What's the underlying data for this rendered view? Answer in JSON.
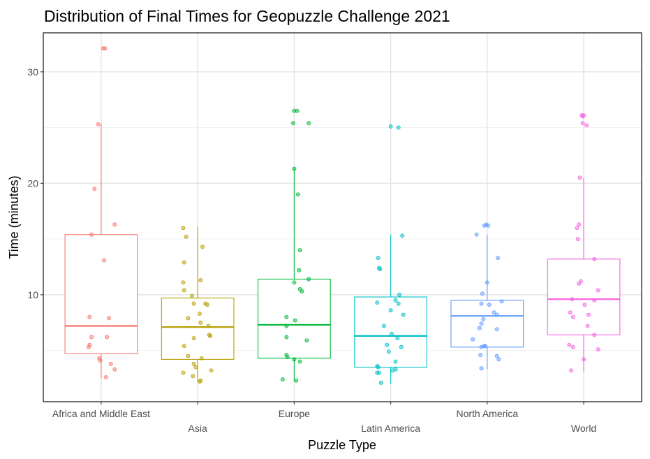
{
  "chart_data": {
    "type": "boxplot",
    "title": "Distribution of Final Times for Geopuzzle Challenge 2021",
    "xlabel": "Puzzle Type",
    "ylabel": "Time (minutes)",
    "ylim": [
      0.4,
      33.5
    ],
    "yticks": [
      10,
      20,
      30
    ],
    "grid": true,
    "legend": "none",
    "categories": [
      "Africa and Middle East",
      "Asia",
      "Europe",
      "Latin America",
      "North America",
      "World"
    ],
    "colors": [
      "#F8766D",
      "#B79F00",
      "#00BA38",
      "#00BFC4",
      "#619CFF",
      "#F564E3"
    ],
    "boxes": [
      {
        "whisker_low": 2.5,
        "q1": 4.7,
        "median": 7.2,
        "q3": 15.4,
        "whisker_high": 25.3
      },
      {
        "whisker_low": 2.2,
        "q1": 4.2,
        "median": 7.1,
        "q3": 9.7,
        "whisker_high": 16.1
      },
      {
        "whisker_low": 2.2,
        "q1": 4.3,
        "median": 7.3,
        "q3": 11.4,
        "whisker_high": 21.3
      },
      {
        "whisker_low": 2.0,
        "q1": 3.5,
        "median": 6.3,
        "q3": 9.8,
        "whisker_high": 15.4
      },
      {
        "whisker_low": 3.3,
        "q1": 5.3,
        "median": 8.1,
        "q3": 9.5,
        "whisker_high": 15.4
      },
      {
        "whisker_low": 3.1,
        "q1": 6.4,
        "median": 9.6,
        "q3": 13.2,
        "whisker_high": 20.5
      }
    ],
    "points": [
      [
        [
          32.1,
          0.02
        ],
        [
          32.1,
          0.04
        ],
        [
          25.3,
          -0.03
        ],
        [
          19.5,
          -0.07
        ],
        [
          16.3,
          0.14
        ],
        [
          15.4,
          -0.1
        ],
        [
          13.1,
          0.03
        ],
        [
          8.0,
          -0.12
        ],
        [
          7.9,
          0.08
        ],
        [
          6.2,
          -0.1
        ],
        [
          6.2,
          0.06
        ],
        [
          5.5,
          -0.12
        ],
        [
          5.3,
          -0.13
        ],
        [
          4.3,
          -0.02
        ],
        [
          4.1,
          -0.01
        ],
        [
          3.8,
          0.1
        ],
        [
          3.3,
          0.14
        ],
        [
          2.6,
          0.05
        ]
      ],
      [
        [
          16.0,
          -0.15
        ],
        [
          15.2,
          -0.12
        ],
        [
          14.3,
          0.05
        ],
        [
          12.9,
          -0.14
        ],
        [
          11.3,
          0.03
        ],
        [
          11.1,
          -0.15
        ],
        [
          10.4,
          -0.14
        ],
        [
          9.9,
          -0.06
        ],
        [
          9.2,
          -0.04
        ],
        [
          9.2,
          0.08
        ],
        [
          9.1,
          0.1
        ],
        [
          8.3,
          0.02
        ],
        [
          7.9,
          -0.1
        ],
        [
          7.5,
          0.03
        ],
        [
          7.2,
          0.11
        ],
        [
          6.4,
          0.12
        ],
        [
          6.3,
          0.13
        ],
        [
          6.1,
          -0.04
        ],
        [
          5.4,
          -0.14
        ],
        [
          4.5,
          -0.1
        ],
        [
          4.3,
          0.04
        ],
        [
          3.8,
          -0.04
        ],
        [
          3.5,
          -0.02
        ],
        [
          3.0,
          -0.15
        ],
        [
          3.2,
          0.14
        ],
        [
          2.7,
          -0.05
        ],
        [
          2.3,
          0.03
        ],
        [
          2.2,
          0.02
        ]
      ],
      [
        [
          26.5,
          0.0
        ],
        [
          26.5,
          0.03
        ],
        [
          25.4,
          -0.01
        ],
        [
          25.4,
          0.15
        ],
        [
          21.3,
          0.0
        ],
        [
          19.0,
          0.04
        ],
        [
          14.0,
          0.06
        ],
        [
          12.2,
          0.05
        ],
        [
          11.4,
          0.15
        ],
        [
          11.1,
          0.0
        ],
        [
          10.5,
          0.06
        ],
        [
          10.3,
          0.08
        ],
        [
          8.0,
          -0.08
        ],
        [
          7.7,
          0.01
        ],
        [
          7.2,
          -0.08
        ],
        [
          6.2,
          -0.08
        ],
        [
          5.9,
          0.13
        ],
        [
          4.6,
          -0.08
        ],
        [
          4.4,
          -0.07
        ],
        [
          4.2,
          0.0
        ],
        [
          4.0,
          0.06
        ],
        [
          2.4,
          -0.12
        ],
        [
          2.3,
          0.02
        ]
      ],
      [
        [
          25.1,
          0.0
        ],
        [
          25.0,
          0.08
        ],
        [
          15.3,
          0.12
        ],
        [
          13.3,
          -0.13
        ],
        [
          12.4,
          -0.12
        ],
        [
          12.3,
          -0.11
        ],
        [
          10.0,
          0.09
        ],
        [
          9.5,
          0.05
        ],
        [
          9.3,
          -0.14
        ],
        [
          9.2,
          0.08
        ],
        [
          8.6,
          0.0
        ],
        [
          8.2,
          0.13
        ],
        [
          7.2,
          -0.07
        ],
        [
          6.5,
          0.01
        ],
        [
          6.1,
          0.07
        ],
        [
          5.5,
          -0.04
        ],
        [
          5.3,
          0.11
        ],
        [
          4.9,
          -0.02
        ],
        [
          4.0,
          0.05
        ],
        [
          3.6,
          -0.14
        ],
        [
          3.5,
          -0.13
        ],
        [
          3.3,
          0.05
        ],
        [
          3.2,
          0.02
        ],
        [
          3.0,
          -0.12
        ],
        [
          3.0,
          -0.14
        ],
        [
          2.1,
          -0.1
        ]
      ],
      [
        [
          16.2,
          -0.03
        ],
        [
          16.3,
          -0.01
        ],
        [
          16.2,
          0.01
        ],
        [
          15.4,
          -0.11
        ],
        [
          13.3,
          0.11
        ],
        [
          11.1,
          0.0
        ],
        [
          10.1,
          -0.05
        ],
        [
          9.4,
          0.15
        ],
        [
          9.2,
          -0.06
        ],
        [
          9.1,
          0.02
        ],
        [
          8.4,
          0.07
        ],
        [
          8.2,
          0.1
        ],
        [
          7.8,
          -0.04
        ],
        [
          7.4,
          -0.06
        ],
        [
          7.0,
          -0.08
        ],
        [
          6.9,
          0.1
        ],
        [
          6.0,
          -0.15
        ],
        [
          5.4,
          -0.03
        ],
        [
          5.4,
          -0.02
        ],
        [
          5.3,
          -0.06
        ],
        [
          4.6,
          -0.07
        ],
        [
          4.5,
          0.1
        ],
        [
          4.2,
          0.12
        ],
        [
          3.4,
          -0.06
        ]
      ],
      [
        [
          26.1,
          -0.02
        ],
        [
          26.0,
          -0.01
        ],
        [
          26.1,
          0.0
        ],
        [
          25.4,
          -0.01
        ],
        [
          25.2,
          0.03
        ],
        [
          20.5,
          -0.04
        ],
        [
          16.3,
          -0.05
        ],
        [
          16.0,
          -0.07
        ],
        [
          15.0,
          -0.06
        ],
        [
          13.2,
          0.11
        ],
        [
          11.2,
          -0.03
        ],
        [
          11.0,
          -0.05
        ],
        [
          10.4,
          0.15
        ],
        [
          9.6,
          -0.12
        ],
        [
          9.5,
          0.11
        ],
        [
          9.1,
          0.01
        ],
        [
          8.4,
          -0.14
        ],
        [
          8.2,
          0.05
        ],
        [
          8.0,
          -0.11
        ],
        [
          7.2,
          0.04
        ],
        [
          6.4,
          0.11
        ],
        [
          5.5,
          -0.15
        ],
        [
          5.3,
          -0.11
        ],
        [
          5.1,
          0.15
        ],
        [
          4.2,
          0.0
        ],
        [
          3.2,
          -0.13
        ]
      ]
    ]
  }
}
